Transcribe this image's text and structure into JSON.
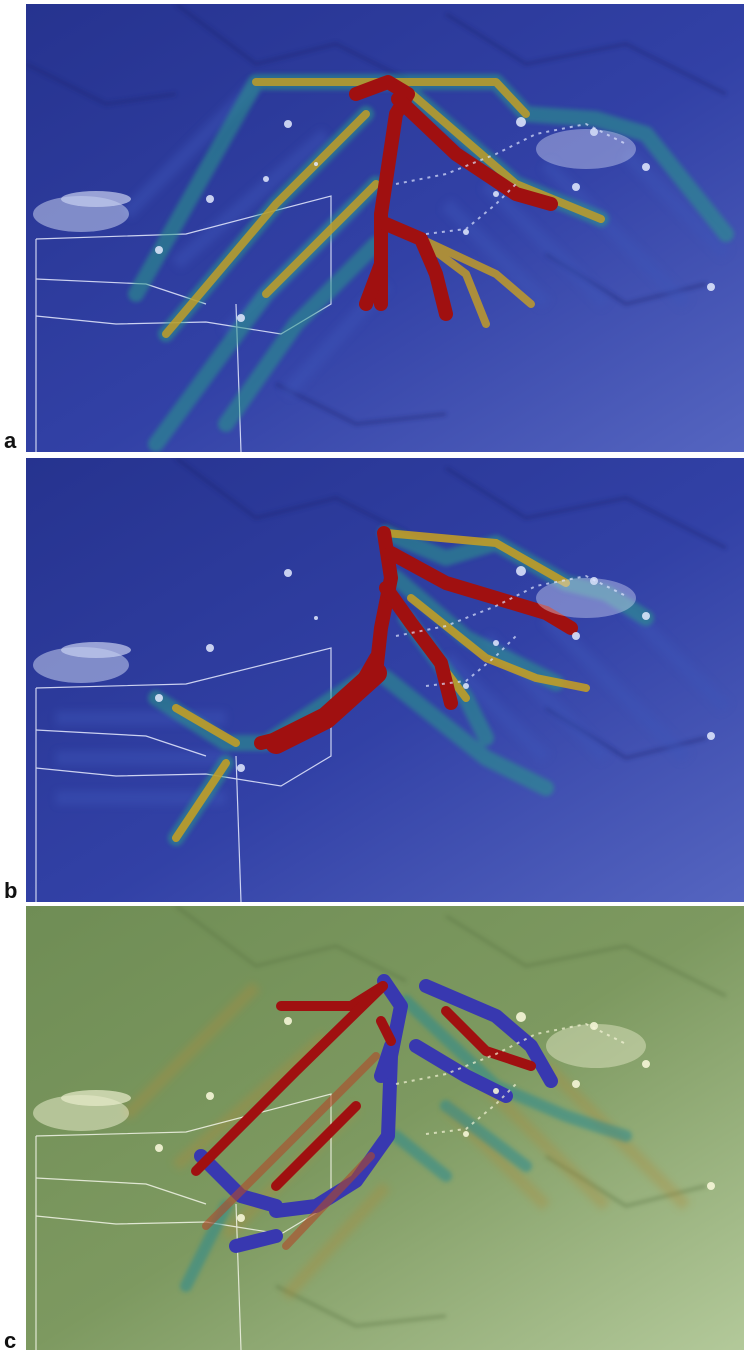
{
  "figure": {
    "panels": [
      {
        "label": "a",
        "scheme": "blue"
      },
      {
        "label": "b",
        "scheme": "blue"
      },
      {
        "label": "c",
        "scheme": "green"
      }
    ],
    "colors": {
      "blue_background": "#2f3c9e",
      "green_background": "#7f9960",
      "flow_high": "#a01010",
      "flow_mid": "#c9a020",
      "flow_low": "#2a9a8a",
      "flow_negative": "#3838b0",
      "settlement": "#dfe6ff",
      "boundary": "#ffffff"
    }
  }
}
